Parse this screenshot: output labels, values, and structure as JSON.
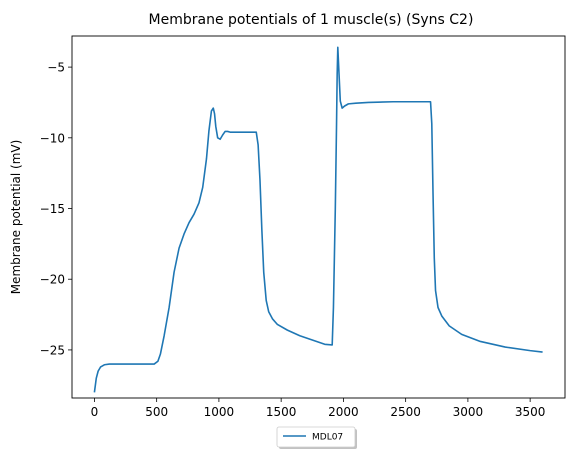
{
  "chart_data": {
    "type": "line",
    "title": "Membrane potentials of 1 muscle(s) (Syns C2)",
    "xlabel": "",
    "ylabel": "Membrane potential (mV)",
    "xlim": [
      -180,
      3780
    ],
    "ylim": [
      -28.4,
      -2.8
    ],
    "xticks": [
      0,
      500,
      1000,
      1500,
      2000,
      2500,
      3000,
      3500
    ],
    "yticks": [
      -25,
      -20,
      -15,
      -10,
      -5
    ],
    "grid": false,
    "legend_placement": "bottom-center, below axes",
    "series": [
      {
        "name": "MDL07",
        "color": "#1f77b4",
        "x": [
          0,
          15,
          30,
          50,
          80,
          120,
          200,
          300,
          400,
          480,
          510,
          530,
          560,
          600,
          640,
          680,
          720,
          760,
          800,
          840,
          870,
          900,
          920,
          940,
          955,
          965,
          975,
          990,
          1010,
          1030,
          1050,
          1070,
          1090,
          1120,
          1150,
          1200,
          1260,
          1300,
          1315,
          1330,
          1345,
          1360,
          1380,
          1400,
          1430,
          1470,
          1550,
          1650,
          1750,
          1850,
          1910,
          1920,
          1935,
          1945,
          1950,
          1955,
          1965,
          1975,
          1990,
          2010,
          2040,
          2100,
          2200,
          2400,
          2600,
          2700,
          2710,
          2720,
          2730,
          2740,
          2760,
          2790,
          2850,
          2950,
          3100,
          3300,
          3500,
          3600
        ],
        "y": [
          -28.0,
          -27.0,
          -26.5,
          -26.2,
          -26.05,
          -26.0,
          -26.0,
          -26.0,
          -26.0,
          -26.0,
          -25.8,
          -25.3,
          -24.0,
          -22.0,
          -19.5,
          -17.8,
          -16.8,
          -16.0,
          -15.4,
          -14.6,
          -13.5,
          -11.5,
          -9.5,
          -8.1,
          -7.9,
          -8.3,
          -9.2,
          -10.0,
          -10.1,
          -9.8,
          -9.55,
          -9.55,
          -9.6,
          -9.6,
          -9.6,
          -9.6,
          -9.6,
          -9.6,
          -10.5,
          -13.0,
          -16.5,
          -19.5,
          -21.5,
          -22.3,
          -22.8,
          -23.2,
          -23.6,
          -24.0,
          -24.3,
          -24.6,
          -24.65,
          -22.0,
          -15.0,
          -9.0,
          -5.5,
          -3.6,
          -5.5,
          -7.4,
          -7.9,
          -7.75,
          -7.6,
          -7.55,
          -7.5,
          -7.45,
          -7.45,
          -7.45,
          -9.0,
          -14.0,
          -18.5,
          -20.8,
          -22.0,
          -22.6,
          -23.3,
          -23.9,
          -24.4,
          -24.8,
          -25.05,
          -25.15
        ]
      }
    ]
  }
}
